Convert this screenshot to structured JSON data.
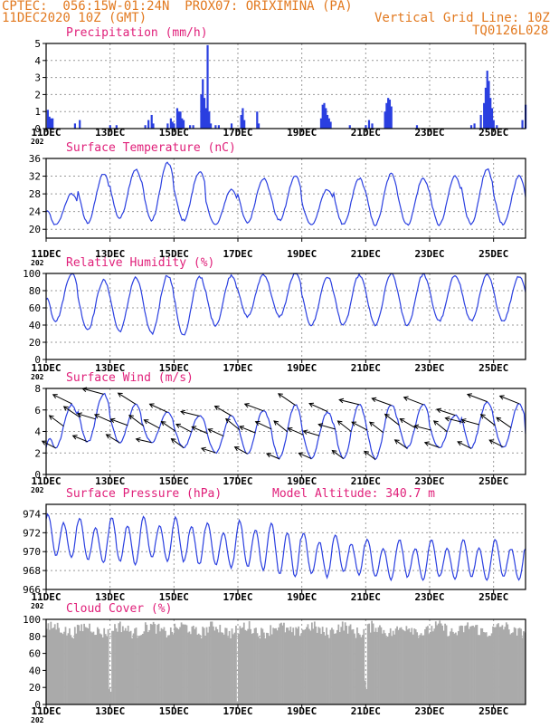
{
  "header": {
    "line1": "CPTEC:  056:15W-01:24N  PROX07: ORIXIMINA (PA)",
    "line2_left": "11DEC2020 10Z (GMT)",
    "line2_right": "Vertical Grid Line: 10Z",
    "line3_right": "TQ0126L028"
  },
  "colors": {
    "header": "#e2791f",
    "title": "#e0207a",
    "series": "#2a3fe0",
    "cloud": "#aaaaaa",
    "wind_arrow": "#000000",
    "grid": "#999999"
  },
  "x_axis": {
    "tick_labels": [
      "11DEC",
      "13DEC",
      "15DEC",
      "17DEC",
      "19DEC",
      "21DEC",
      "23DEC",
      "25DEC"
    ],
    "tick_days": [
      0,
      2,
      4,
      6,
      8,
      10,
      12,
      14
    ],
    "stub_label": "202",
    "range_days": [
      0,
      15
    ],
    "vertical_grid_hour": "10Z"
  },
  "chart_data": [
    {
      "id": "precip",
      "type": "bar",
      "title": "Precipitation  (mm/h)",
      "ylim": [
        0,
        5
      ],
      "yticks": [
        0,
        1,
        2,
        3,
        4,
        5
      ],
      "grid": true,
      "bars": [
        [
          0.05,
          1.1
        ],
        [
          0.1,
          0.7
        ],
        [
          0.15,
          0.6
        ],
        [
          0.2,
          0.6
        ],
        [
          0.9,
          0.3
        ],
        [
          1.05,
          0.5
        ],
        [
          2.0,
          0.2
        ],
        [
          2.2,
          0.2
        ],
        [
          3.1,
          0.2
        ],
        [
          3.2,
          0.5
        ],
        [
          3.3,
          0.8
        ],
        [
          3.35,
          0.3
        ],
        [
          3.8,
          0.3
        ],
        [
          3.9,
          0.6
        ],
        [
          3.95,
          0.4
        ],
        [
          4.0,
          0.3
        ],
        [
          4.1,
          1.2
        ],
        [
          4.15,
          1.0
        ],
        [
          4.2,
          1.0
        ],
        [
          4.25,
          0.6
        ],
        [
          4.3,
          0.5
        ],
        [
          4.5,
          0.2
        ],
        [
          4.6,
          0.2
        ],
        [
          4.85,
          2.0
        ],
        [
          4.9,
          2.9
        ],
        [
          4.95,
          1.8
        ],
        [
          5.0,
          1.2
        ],
        [
          5.05,
          4.9
        ],
        [
          5.1,
          1.0
        ],
        [
          5.15,
          0.3
        ],
        [
          5.3,
          0.2
        ],
        [
          5.4,
          0.2
        ],
        [
          5.8,
          0.3
        ],
        [
          6.1,
          0.8
        ],
        [
          6.15,
          1.2
        ],
        [
          6.2,
          0.5
        ],
        [
          6.6,
          1.0
        ],
        [
          6.65,
          0.3
        ],
        [
          8.6,
          0.6
        ],
        [
          8.65,
          1.4
        ],
        [
          8.7,
          1.5
        ],
        [
          8.75,
          1.2
        ],
        [
          8.8,
          0.8
        ],
        [
          8.85,
          0.6
        ],
        [
          8.9,
          0.4
        ],
        [
          9.5,
          0.2
        ],
        [
          10.0,
          0.2
        ],
        [
          10.1,
          0.5
        ],
        [
          10.2,
          0.3
        ],
        [
          10.6,
          1.0
        ],
        [
          10.65,
          1.5
        ],
        [
          10.7,
          1.8
        ],
        [
          10.75,
          1.7
        ],
        [
          10.8,
          1.3
        ],
        [
          11.6,
          0.2
        ],
        [
          13.3,
          0.2
        ],
        [
          13.4,
          0.3
        ],
        [
          13.6,
          0.8
        ],
        [
          13.7,
          1.5
        ],
        [
          13.75,
          2.4
        ],
        [
          13.8,
          3.4
        ],
        [
          13.85,
          2.8
        ],
        [
          13.9,
          1.8
        ],
        [
          13.95,
          1.2
        ],
        [
          14.0,
          0.5
        ],
        [
          14.1,
          0.2
        ],
        [
          14.9,
          0.5
        ],
        [
          15.0,
          1.4
        ]
      ]
    },
    {
      "id": "temp",
      "type": "line",
      "title": "Surface Temperature  (nC)",
      "ylim": [
        18,
        36
      ],
      "yticks": [
        20,
        24,
        28,
        32,
        36
      ],
      "grid": true,
      "diurnal": {
        "min": [
          21.0,
          21.5,
          22.5,
          22.0,
          22.0,
          21.0,
          21.5,
          22.0,
          21.0,
          21.0,
          21.0,
          21.0,
          21.0,
          21.0,
          21.0,
          21.0
        ],
        "max": [
          28.0,
          32.5,
          33.5,
          35.0,
          33.0,
          29.0,
          31.5,
          32.0,
          29.0,
          31.5,
          32.5,
          31.5,
          32.0,
          33.5,
          32.0,
          30.5
        ],
        "start": 24.0
      }
    },
    {
      "id": "rh",
      "type": "line",
      "title": "Relative Humidity  (%)",
      "ylim": [
        0,
        100
      ],
      "yticks": [
        0,
        20,
        40,
        60,
        80,
        100
      ],
      "grid": true,
      "diurnal": {
        "min": [
          45,
          35,
          33,
          30,
          28,
          40,
          50,
          50,
          40,
          40,
          40,
          40,
          45,
          45,
          45,
          45
        ],
        "max": [
          100,
          92,
          95,
          98,
          97,
          98,
          99,
          100,
          96,
          98,
          100,
          99,
          98,
          98,
          97,
          95
        ],
        "start": 70
      }
    },
    {
      "id": "wind",
      "type": "line",
      "title": "Surface Wind  (m/s)",
      "ylim": [
        0,
        8
      ],
      "yticks": [
        0,
        2,
        4,
        6,
        8
      ],
      "grid": true,
      "diurnal": {
        "min": [
          2.5,
          3.0,
          3.0,
          3.0,
          2.5,
          2.0,
          2.0,
          1.5,
          1.5,
          1.5,
          1.5,
          2.5,
          2.5,
          2.5,
          2.5,
          2.5
        ],
        "max": [
          6.5,
          7.5,
          6.5,
          5.8,
          5.5,
          5.5,
          6.0,
          6.5,
          5.8,
          6.5,
          6.5,
          6.5,
          5.5,
          6.8,
          6.5,
          4.5
        ],
        "start": 2.5
      },
      "arrows_every_hours": 6,
      "arrow_direction": "from east-northeast"
    },
    {
      "id": "pres",
      "type": "line",
      "title": "Surface Pressure  (hPa)",
      "annotation": "Model Altitude: 340.7  m",
      "ylim": [
        966,
        975
      ],
      "yticks": [
        966,
        968,
        970,
        972,
        974
      ],
      "grid": true,
      "semidiurnal": {
        "mean": [
          971.5,
          971.0,
          971.0,
          971.2,
          971.0,
          970.5,
          970.5,
          970.0,
          969.5,
          969.5,
          969.0,
          969.0,
          969.0,
          969.0,
          969.0,
          968.5
        ],
        "amp": [
          2.0,
          2.0,
          2.2,
          2.0,
          2.2,
          2.0,
          2.3,
          2.5,
          2.0,
          1.8,
          1.8,
          1.8,
          1.8,
          1.8,
          1.8,
          1.8
        ]
      }
    },
    {
      "id": "cloud",
      "type": "bar",
      "title": "Cloud Cover  (%)",
      "ylim": [
        0,
        100
      ],
      "yticks": [
        0,
        20,
        40,
        60,
        80,
        100
      ],
      "grid": true,
      "typical_value": 88,
      "dips": [
        [
          1.95,
          18
        ],
        [
          2.0,
          15
        ],
        [
          5.95,
          3
        ],
        [
          10.0,
          18
        ],
        [
          9.95,
          28
        ]
      ]
    }
  ]
}
